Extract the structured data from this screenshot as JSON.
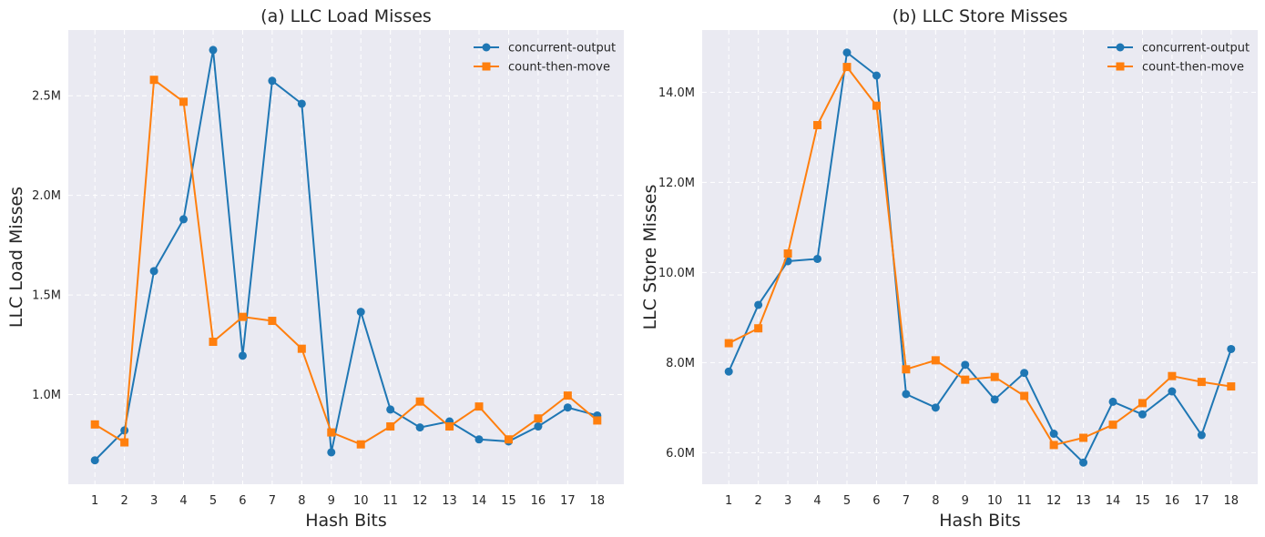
{
  "chart_data": [
    {
      "type": "line",
      "title": "(a) LLC Load Misses",
      "xlabel": "Hash Bits",
      "ylabel": "LLC Load Misses",
      "x": [
        1,
        2,
        3,
        4,
        5,
        6,
        7,
        8,
        9,
        10,
        11,
        12,
        13,
        14,
        15,
        16,
        17,
        18
      ],
      "ylim": [
        550000,
        2830000
      ],
      "yticks": [
        1000000,
        1500000,
        2000000,
        2500000
      ],
      "ytick_labels": [
        "1.0M",
        "1.5M",
        "2.0M",
        "2.5M"
      ],
      "grid": true,
      "legend_position": "top-right",
      "series": [
        {
          "name": "concurrent-output",
          "color": "#1f77b4",
          "marker": "circle",
          "values": [
            670000,
            820000,
            1620000,
            1880000,
            2730000,
            1195000,
            2575000,
            2460000,
            710000,
            1415000,
            925000,
            835000,
            865000,
            775000,
            765000,
            840000,
            935000,
            895000
          ]
        },
        {
          "name": "count-then-move",
          "color": "#ff7f0e",
          "marker": "square",
          "values": [
            850000,
            760000,
            2580000,
            2470000,
            1265000,
            1390000,
            1370000,
            1230000,
            810000,
            750000,
            840000,
            965000,
            840000,
            940000,
            775000,
            880000,
            995000,
            870000
          ]
        }
      ]
    },
    {
      "type": "line",
      "title": "(b) LLC Store Misses",
      "xlabel": "Hash Bits",
      "ylabel": "LLC Store Misses",
      "x": [
        1,
        2,
        3,
        4,
        5,
        6,
        7,
        8,
        9,
        10,
        11,
        12,
        13,
        14,
        15,
        16,
        17,
        18
      ],
      "ylim": [
        5300000,
        15380000
      ],
      "yticks": [
        6000000,
        8000000,
        10000000,
        12000000,
        14000000
      ],
      "ytick_labels": [
        "6.0M",
        "8.0M",
        "10.0M",
        "12.0M",
        "14.0M"
      ],
      "grid": true,
      "legend_position": "top-right",
      "series": [
        {
          "name": "concurrent-output",
          "color": "#1f77b4",
          "marker": "circle",
          "values": [
            7800000,
            9280000,
            10250000,
            10300000,
            14880000,
            14370000,
            7300000,
            7000000,
            7950000,
            7180000,
            7770000,
            6420000,
            5780000,
            7130000,
            6850000,
            7360000,
            6390000,
            8300000
          ]
        },
        {
          "name": "count-then-move",
          "color": "#ff7f0e",
          "marker": "square",
          "values": [
            8430000,
            8760000,
            10420000,
            13270000,
            14560000,
            13700000,
            7850000,
            8050000,
            7620000,
            7680000,
            7260000,
            6170000,
            6330000,
            6620000,
            7100000,
            7700000,
            7570000,
            7470000
          ]
        }
      ]
    }
  ]
}
